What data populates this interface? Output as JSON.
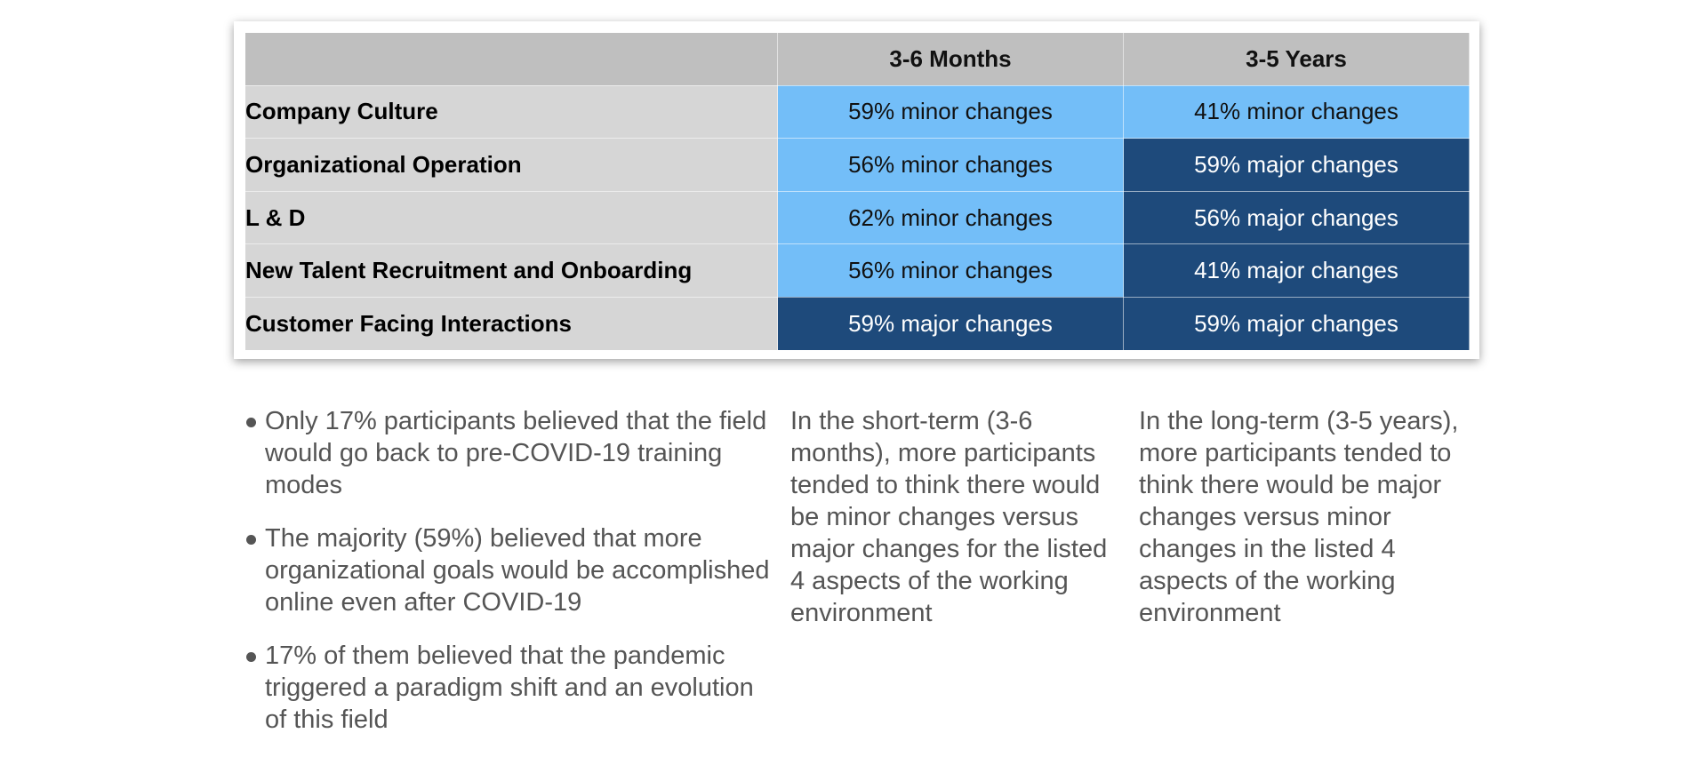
{
  "table": {
    "columns": [
      "",
      "3-6 Months",
      "3-5 Years"
    ],
    "rows": [
      {
        "label": "Company Culture",
        "short": "59% minor changes",
        "long": "41% minor changes",
        "short_type": "minor",
        "long_type": "minor"
      },
      {
        "label": "Organizational Operation",
        "short": "56% minor changes",
        "long": "59% major changes",
        "short_type": "minor",
        "long_type": "major"
      },
      {
        "label": "L & D",
        "short": "62% minor changes",
        "long": "56% major changes",
        "short_type": "minor",
        "long_type": "major"
      },
      {
        "label": "New Talent Recruitment and Onboarding",
        "short": "56% minor changes",
        "long": "41% major changes",
        "short_type": "minor",
        "long_type": "major"
      },
      {
        "label": "Customer Facing Interactions",
        "short": "59% major changes",
        "long": "59% major changes",
        "short_type": "major",
        "long_type": "major"
      }
    ],
    "colors": {
      "minor": "#73bef8",
      "major": "#1e4a7b",
      "header": "#bfbfbf",
      "row_label": "#d6d6d6"
    }
  },
  "bullets": [
    "Only 17% participants believed that the field would go back to pre-COVID-19 training modes",
    "The majority (59%) believed that more organizational goals would be accomplished online even after COVID-19",
    "17% of them believed that the pandemic triggered a paradigm shift and an evolution of this field"
  ],
  "short_term_note": "In the short-term (3-6 months), more participants tended to think there would be minor changes versus major changes for the listed 4 aspects of the working environment",
  "long_term_note": "In the long-term (3-5 years), more participants tended to think there would be major changes versus minor changes in the listed 4 aspects of the working environment"
}
